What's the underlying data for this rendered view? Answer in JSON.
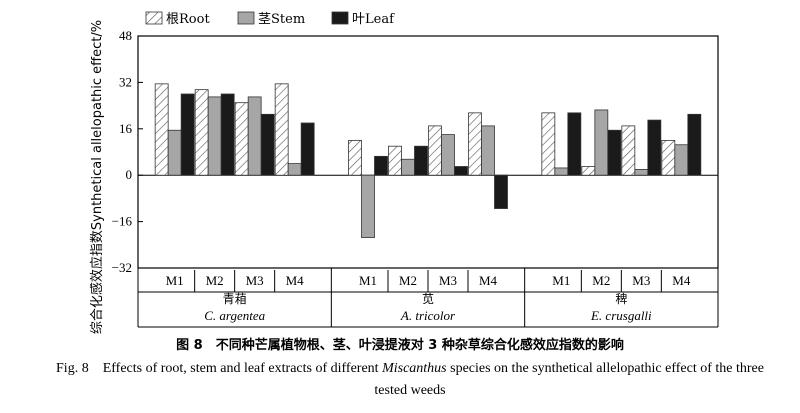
{
  "chart_data": {
    "type": "bar",
    "ylabel": "综合化感效应指数Synthetical allelopathic effect/%",
    "ylim": [
      -32,
      48
    ],
    "yticks": [
      -32,
      -16,
      0,
      16,
      32,
      48
    ],
    "grid": false,
    "legend_position": "top-left",
    "groups": [
      {
        "name_cn": "青葙",
        "name_en": "C. argentea",
        "categories": [
          "M1",
          "M2",
          "M3",
          "M4"
        ]
      },
      {
        "name_cn": "苋",
        "name_en": "A. tricolor",
        "categories": [
          "M1",
          "M2",
          "M3",
          "M4"
        ]
      },
      {
        "name_cn": "稗",
        "name_en": "E. crusgalli",
        "categories": [
          "M1",
          "M2",
          "M3",
          "M4"
        ]
      }
    ],
    "series": [
      {
        "name": "根Root",
        "fill": "hatch",
        "color": "#ffffff",
        "values": [
          [
            31.5,
            29.5,
            25,
            31.5
          ],
          [
            12,
            10,
            17,
            21.5
          ],
          [
            21.5,
            3,
            17,
            12
          ]
        ]
      },
      {
        "name": "茎Stem",
        "fill": "solid",
        "color": "#a6a6a6",
        "values": [
          [
            15.5,
            27,
            27,
            4
          ],
          [
            -21.5,
            5.5,
            14,
            17
          ],
          [
            2.5,
            22.5,
            2,
            10.5
          ]
        ]
      },
      {
        "name": "叶Leaf",
        "fill": "solid",
        "color": "#1a1a1a",
        "values": [
          [
            28,
            28,
            21,
            18
          ],
          [
            6.5,
            10,
            3,
            -11.5
          ],
          [
            21.5,
            15.5,
            19,
            21
          ]
        ]
      }
    ]
  },
  "caption": {
    "cn": "图 8　不同种芒属植物根、茎、叶浸提液对 3 种杂草综合化感效应指数的影响",
    "en_prefix": "Fig. 8　Effects of root, stem and leaf extracts of different ",
    "en_italic": "Miscanthus",
    "en_suffix": " species on the synthetical allelopathic effect of the three tested weeds"
  }
}
